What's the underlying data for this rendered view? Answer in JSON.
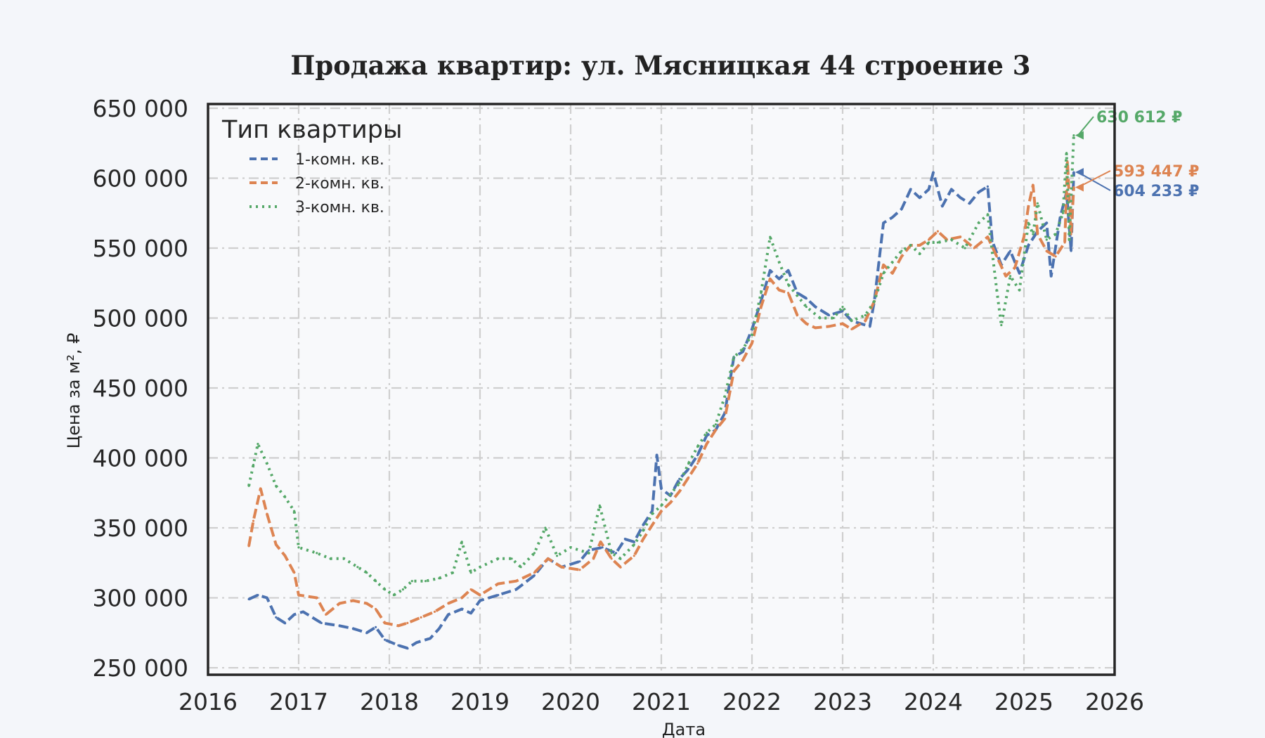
{
  "chart_data": {
    "type": "line",
    "title": "Продажа квартир: ул. Мясницкая 44 строение 3",
    "xlabel": "Дата",
    "ylabel": "Цена за м², ₽",
    "xlim": [
      2016,
      2026
    ],
    "ylim": [
      245000,
      653000
    ],
    "x_ticks": [
      "2016",
      "2017",
      "2018",
      "2019",
      "2020",
      "2021",
      "2022",
      "2023",
      "2024",
      "2025",
      "2026"
    ],
    "y_ticks": [
      "250 000",
      "300 000",
      "350 000",
      "400 000",
      "450 000",
      "500 000",
      "550 000",
      "600 000",
      "650 000"
    ],
    "grid": true,
    "legend": {
      "title": "Тип квартиры",
      "placement": "top-left"
    },
    "series": [
      {
        "name": "1-комн. кв.",
        "color": "#4c72b0",
        "style": "dashed",
        "end_label": "604 233 ₽",
        "points": [
          [
            2016.45,
            299000
          ],
          [
            2016.55,
            302000
          ],
          [
            2016.65,
            300000
          ],
          [
            2016.75,
            286000
          ],
          [
            2016.85,
            282000
          ],
          [
            2016.95,
            288000
          ],
          [
            2017.05,
            290000
          ],
          [
            2017.25,
            282000
          ],
          [
            2017.45,
            280000
          ],
          [
            2017.6,
            278000
          ],
          [
            2017.75,
            275000
          ],
          [
            2017.85,
            279000
          ],
          [
            2017.95,
            270000
          ],
          [
            2018.1,
            266000
          ],
          [
            2018.2,
            264000
          ],
          [
            2018.3,
            268000
          ],
          [
            2018.45,
            271000
          ],
          [
            2018.55,
            278000
          ],
          [
            2018.65,
            288000
          ],
          [
            2018.8,
            292000
          ],
          [
            2018.9,
            289000
          ],
          [
            2019.0,
            298000
          ],
          [
            2019.2,
            302000
          ],
          [
            2019.4,
            306000
          ],
          [
            2019.6,
            316000
          ],
          [
            2019.75,
            328000
          ],
          [
            2019.9,
            322000
          ],
          [
            2020.1,
            326000
          ],
          [
            2020.2,
            334000
          ],
          [
            2020.35,
            336000
          ],
          [
            2020.5,
            332000
          ],
          [
            2020.6,
            342000
          ],
          [
            2020.7,
            340000
          ],
          [
            2020.8,
            352000
          ],
          [
            2020.9,
            362000
          ],
          [
            2020.95,
            402000
          ],
          [
            2021.0,
            378000
          ],
          [
            2021.1,
            373000
          ],
          [
            2021.2,
            385000
          ],
          [
            2021.3,
            392000
          ],
          [
            2021.4,
            402000
          ],
          [
            2021.5,
            416000
          ],
          [
            2021.6,
            420000
          ],
          [
            2021.7,
            432000
          ],
          [
            2021.8,
            472000
          ],
          [
            2021.9,
            476000
          ],
          [
            2022.0,
            492000
          ],
          [
            2022.1,
            512000
          ],
          [
            2022.2,
            534000
          ],
          [
            2022.3,
            528000
          ],
          [
            2022.4,
            534000
          ],
          [
            2022.5,
            518000
          ],
          [
            2022.6,
            514000
          ],
          [
            2022.7,
            508000
          ],
          [
            2022.85,
            502000
          ],
          [
            2023.0,
            505000
          ],
          [
            2023.1,
            498000
          ],
          [
            2023.3,
            494000
          ],
          [
            2023.35,
            512000
          ],
          [
            2023.4,
            540000
          ],
          [
            2023.45,
            568000
          ],
          [
            2023.55,
            572000
          ],
          [
            2023.65,
            578000
          ],
          [
            2023.75,
            592000
          ],
          [
            2023.85,
            586000
          ],
          [
            2023.95,
            592000
          ],
          [
            2024.0,
            604000
          ],
          [
            2024.1,
            580000
          ],
          [
            2024.2,
            592000
          ],
          [
            2024.3,
            586000
          ],
          [
            2024.4,
            582000
          ],
          [
            2024.5,
            590000
          ],
          [
            2024.6,
            594000
          ],
          [
            2024.65,
            555000
          ],
          [
            2024.75,
            538000
          ],
          [
            2024.85,
            548000
          ],
          [
            2024.95,
            532000
          ],
          [
            2025.05,
            552000
          ],
          [
            2025.15,
            562000
          ],
          [
            2025.25,
            568000
          ],
          [
            2025.3,
            530000
          ],
          [
            2025.4,
            572000
          ],
          [
            2025.47,
            590000
          ],
          [
            2025.52,
            548000
          ],
          [
            2025.55,
            604233
          ]
        ]
      },
      {
        "name": "2-комн. кв.",
        "color": "#dd8452",
        "style": "dashed",
        "end_label": "593 447 ₽",
        "points": [
          [
            2016.45,
            337000
          ],
          [
            2016.5,
            355000
          ],
          [
            2016.58,
            378000
          ],
          [
            2016.65,
            360000
          ],
          [
            2016.75,
            338000
          ],
          [
            2016.85,
            330000
          ],
          [
            2016.95,
            318000
          ],
          [
            2017.0,
            302000
          ],
          [
            2017.2,
            300000
          ],
          [
            2017.3,
            288000
          ],
          [
            2017.45,
            296000
          ],
          [
            2017.6,
            298000
          ],
          [
            2017.75,
            296000
          ],
          [
            2017.85,
            292000
          ],
          [
            2017.95,
            282000
          ],
          [
            2018.1,
            280000
          ],
          [
            2018.2,
            282000
          ],
          [
            2018.35,
            286000
          ],
          [
            2018.5,
            290000
          ],
          [
            2018.65,
            296000
          ],
          [
            2018.8,
            300000
          ],
          [
            2018.9,
            306000
          ],
          [
            2019.0,
            302000
          ],
          [
            2019.2,
            310000
          ],
          [
            2019.4,
            312000
          ],
          [
            2019.6,
            318000
          ],
          [
            2019.75,
            328000
          ],
          [
            2019.9,
            322000
          ],
          [
            2020.1,
            320000
          ],
          [
            2020.25,
            328000
          ],
          [
            2020.33,
            340000
          ],
          [
            2020.45,
            328000
          ],
          [
            2020.55,
            322000
          ],
          [
            2020.7,
            330000
          ],
          [
            2020.8,
            342000
          ],
          [
            2020.9,
            352000
          ],
          [
            2021.0,
            362000
          ],
          [
            2021.1,
            368000
          ],
          [
            2021.2,
            376000
          ],
          [
            2021.3,
            386000
          ],
          [
            2021.4,
            396000
          ],
          [
            2021.5,
            410000
          ],
          [
            2021.6,
            420000
          ],
          [
            2021.7,
            428000
          ],
          [
            2021.8,
            462000
          ],
          [
            2021.9,
            470000
          ],
          [
            2022.0,
            482000
          ],
          [
            2022.1,
            508000
          ],
          [
            2022.2,
            528000
          ],
          [
            2022.3,
            520000
          ],
          [
            2022.4,
            518000
          ],
          [
            2022.5,
            502000
          ],
          [
            2022.6,
            496000
          ],
          [
            2022.7,
            493000
          ],
          [
            2022.85,
            494000
          ],
          [
            2023.0,
            496000
          ],
          [
            2023.1,
            492000
          ],
          [
            2023.25,
            498000
          ],
          [
            2023.35,
            512000
          ],
          [
            2023.45,
            538000
          ],
          [
            2023.55,
            532000
          ],
          [
            2023.65,
            544000
          ],
          [
            2023.75,
            552000
          ],
          [
            2023.85,
            552000
          ],
          [
            2023.95,
            556000
          ],
          [
            2024.05,
            562000
          ],
          [
            2024.15,
            556000
          ],
          [
            2024.3,
            558000
          ],
          [
            2024.45,
            550000
          ],
          [
            2024.6,
            558000
          ],
          [
            2024.7,
            544000
          ],
          [
            2024.8,
            530000
          ],
          [
            2024.9,
            536000
          ],
          [
            2025.0,
            558000
          ],
          [
            2025.05,
            580000
          ],
          [
            2025.1,
            595000
          ],
          [
            2025.15,
            560000
          ],
          [
            2025.25,
            548000
          ],
          [
            2025.35,
            544000
          ],
          [
            2025.45,
            554000
          ],
          [
            2025.48,
            612000
          ],
          [
            2025.52,
            560000
          ],
          [
            2025.55,
            593447
          ]
        ]
      },
      {
        "name": "3-комн. кв.",
        "color": "#55a868",
        "style": "dotted",
        "end_label": "630 612 ₽",
        "points": [
          [
            2016.45,
            380000
          ],
          [
            2016.5,
            395000
          ],
          [
            2016.55,
            410000
          ],
          [
            2016.65,
            396000
          ],
          [
            2016.75,
            380000
          ],
          [
            2016.85,
            372000
          ],
          [
            2016.95,
            362000
          ],
          [
            2017.0,
            336000
          ],
          [
            2017.2,
            332000
          ],
          [
            2017.35,
            328000
          ],
          [
            2017.5,
            328000
          ],
          [
            2017.65,
            322000
          ],
          [
            2017.75,
            318000
          ],
          [
            2017.85,
            312000
          ],
          [
            2017.95,
            306000
          ],
          [
            2018.05,
            302000
          ],
          [
            2018.15,
            306000
          ],
          [
            2018.25,
            312000
          ],
          [
            2018.4,
            312000
          ],
          [
            2018.55,
            314000
          ],
          [
            2018.7,
            318000
          ],
          [
            2018.8,
            340000
          ],
          [
            2018.9,
            318000
          ],
          [
            2019.0,
            322000
          ],
          [
            2019.2,
            328000
          ],
          [
            2019.35,
            328000
          ],
          [
            2019.45,
            322000
          ],
          [
            2019.6,
            332000
          ],
          [
            2019.72,
            350000
          ],
          [
            2019.85,
            330000
          ],
          [
            2020.0,
            336000
          ],
          [
            2020.2,
            332000
          ],
          [
            2020.32,
            366000
          ],
          [
            2020.45,
            332000
          ],
          [
            2020.55,
            328000
          ],
          [
            2020.7,
            338000
          ],
          [
            2020.8,
            348000
          ],
          [
            2020.9,
            360000
          ],
          [
            2021.0,
            366000
          ],
          [
            2021.1,
            374000
          ],
          [
            2021.2,
            382000
          ],
          [
            2021.3,
            396000
          ],
          [
            2021.4,
            408000
          ],
          [
            2021.5,
            418000
          ],
          [
            2021.6,
            424000
          ],
          [
            2021.7,
            444000
          ],
          [
            2021.8,
            472000
          ],
          [
            2021.9,
            478000
          ],
          [
            2022.0,
            488000
          ],
          [
            2022.1,
            518000
          ],
          [
            2022.2,
            558000
          ],
          [
            2022.3,
            540000
          ],
          [
            2022.4,
            524000
          ],
          [
            2022.5,
            516000
          ],
          [
            2022.6,
            508000
          ],
          [
            2022.75,
            500000
          ],
          [
            2022.9,
            500000
          ],
          [
            2023.0,
            508000
          ],
          [
            2023.1,
            498000
          ],
          [
            2023.25,
            502000
          ],
          [
            2023.35,
            512000
          ],
          [
            2023.45,
            532000
          ],
          [
            2023.55,
            540000
          ],
          [
            2023.65,
            548000
          ],
          [
            2023.75,
            552000
          ],
          [
            2023.85,
            546000
          ],
          [
            2023.95,
            554000
          ],
          [
            2024.05,
            554000
          ],
          [
            2024.2,
            556000
          ],
          [
            2024.35,
            550000
          ],
          [
            2024.5,
            568000
          ],
          [
            2024.6,
            574000
          ],
          [
            2024.7,
            520000
          ],
          [
            2024.75,
            495000
          ],
          [
            2024.85,
            530000
          ],
          [
            2024.95,
            520000
          ],
          [
            2025.05,
            568000
          ],
          [
            2025.1,
            560000
          ],
          [
            2025.15,
            582000
          ],
          [
            2025.25,
            556000
          ],
          [
            2025.35,
            560000
          ],
          [
            2025.43,
            575000
          ],
          [
            2025.47,
            618000
          ],
          [
            2025.5,
            556000
          ],
          [
            2025.55,
            630612
          ]
        ]
      }
    ]
  }
}
